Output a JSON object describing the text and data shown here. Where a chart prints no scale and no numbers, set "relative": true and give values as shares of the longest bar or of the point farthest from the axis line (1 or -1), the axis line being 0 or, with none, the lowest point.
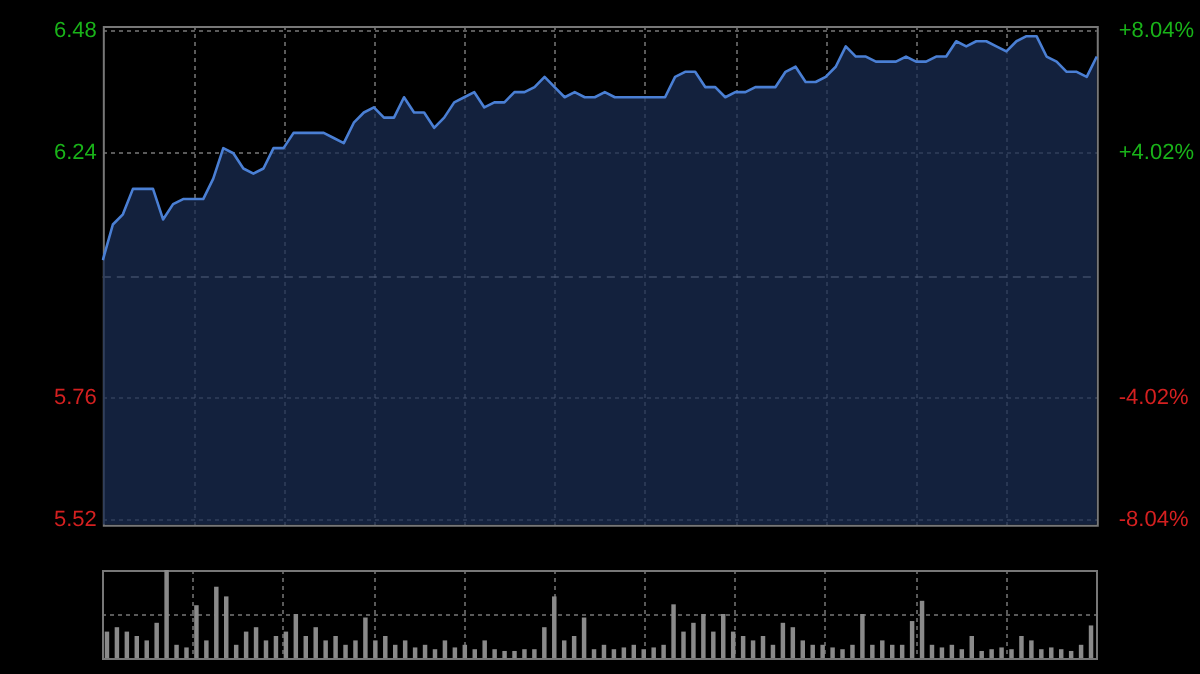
{
  "chart_data": [
    {
      "type": "area",
      "color": "#4a7fd4",
      "categories": [
        null,
        null,
        null,
        null,
        null,
        null,
        null,
        null,
        null,
        null,
        null,
        null,
        null,
        null,
        null,
        null,
        null,
        null,
        null,
        null,
        null,
        null,
        null,
        null,
        null,
        null,
        null,
        null,
        null,
        null,
        null,
        null,
        null,
        null,
        null,
        null,
        null,
        null,
        null,
        null,
        null,
        null,
        null,
        null,
        null,
        null,
        null,
        null,
        null,
        null,
        null,
        null,
        null,
        null,
        null,
        null,
        null,
        null,
        null,
        null,
        null,
        null,
        null,
        null,
        null,
        null,
        null,
        null,
        null,
        null,
        null,
        null,
        null,
        null,
        null,
        null,
        null,
        null,
        null,
        null,
        null,
        null,
        null,
        null,
        null,
        null,
        null,
        null,
        null,
        null,
        null,
        null,
        null,
        null,
        null,
        null,
        null,
        null,
        null,
        null
      ],
      "values": [
        6.03,
        6.1,
        6.12,
        6.17,
        6.17,
        6.17,
        6.11,
        6.14,
        6.15,
        6.15,
        6.15,
        6.19,
        6.25,
        6.24,
        6.21,
        6.2,
        6.21,
        6.25,
        6.25,
        6.28,
        6.28,
        6.28,
        6.28,
        6.27,
        6.26,
        6.3,
        6.32,
        6.33,
        6.31,
        6.31,
        6.35,
        6.32,
        6.32,
        6.29,
        6.31,
        6.34,
        6.35,
        6.36,
        6.33,
        6.34,
        6.34,
        6.36,
        6.36,
        6.37,
        6.39,
        6.37,
        6.35,
        6.36,
        6.35,
        6.35,
        6.36,
        6.35,
        6.35,
        6.35,
        6.35,
        6.35,
        6.35,
        6.39,
        6.4,
        6.4,
        6.37,
        6.37,
        6.35,
        6.36,
        6.36,
        6.37,
        6.37,
        6.37,
        6.4,
        6.41,
        6.38,
        6.38,
        6.39,
        6.41,
        6.45,
        6.43,
        6.43,
        6.42,
        6.42,
        6.42,
        6.43,
        6.42,
        6.42,
        6.43,
        6.43,
        6.46,
        6.45,
        6.46,
        6.46,
        6.45,
        6.44,
        6.46,
        6.47,
        6.47,
        6.43,
        6.42,
        6.4,
        6.4,
        6.39,
        6.43
      ],
      "ylim": [
        5.51,
        6.49
      ],
      "yticks": [
        5.52,
        5.76,
        6.24,
        6.48
      ],
      "y2lim": [
        -8.2,
        8.2
      ],
      "y2ticks": [
        {
          "value": -8.04,
          "label": "-8.04%"
        },
        {
          "value": -4.02,
          "label": "-4.02%"
        },
        {
          "value": 4.02,
          "label": "+4.02%"
        },
        {
          "value": 8.04,
          "label": "+8.04%"
        }
      ],
      "ref_lines": [
        {
          "axis": "y",
          "value": 6.0
        }
      ],
      "grid": true
    },
    {
      "type": "bar",
      "relative": true,
      "color": "#8a8a8a",
      "grid": true,
      "categories": [
        null,
        null,
        null,
        null,
        null,
        null,
        null,
        null,
        null,
        null,
        null,
        null,
        null,
        null,
        null,
        null,
        null,
        null,
        null,
        null,
        null,
        null,
        null,
        null,
        null,
        null,
        null,
        null,
        null,
        null,
        null,
        null,
        null,
        null,
        null,
        null,
        null,
        null,
        null,
        null,
        null,
        null,
        null,
        null,
        null,
        null,
        null,
        null,
        null,
        null,
        null,
        null,
        null,
        null,
        null,
        null,
        null,
        null,
        null,
        null,
        null,
        null,
        null,
        null,
        null,
        null,
        null,
        null,
        null,
        null,
        null,
        null,
        null,
        null,
        null,
        null,
        null,
        null,
        null,
        null,
        null,
        null,
        null,
        null,
        null,
        null,
        null,
        null,
        null,
        null,
        null,
        null,
        null,
        null,
        null,
        null,
        null,
        null,
        null,
        null
      ],
      "values": [
        0.3,
        0.35,
        0.3,
        0.25,
        0.2,
        0.4,
        1.0,
        0.15,
        0.12,
        0.6,
        0.2,
        0.81,
        0.7,
        0.15,
        0.3,
        0.35,
        0.2,
        0.25,
        0.3,
        0.5,
        0.25,
        0.35,
        0.2,
        0.25,
        0.15,
        0.2,
        0.46,
        0.2,
        0.25,
        0.15,
        0.2,
        0.12,
        0.15,
        0.1,
        0.2,
        0.12,
        0.15,
        0.1,
        0.2,
        0.1,
        0.08,
        0.08,
        0.1,
        0.1,
        0.35,
        0.7,
        0.2,
        0.25,
        0.46,
        0.1,
        0.15,
        0.1,
        0.12,
        0.15,
        0.1,
        0.12,
        0.15,
        0.61,
        0.3,
        0.4,
        0.5,
        0.3,
        0.5,
        0.3,
        0.25,
        0.2,
        0.25,
        0.15,
        0.4,
        0.35,
        0.2,
        0.15,
        0.15,
        0.12,
        0.1,
        0.15,
        0.5,
        0.15,
        0.2,
        0.15,
        0.15,
        0.42,
        0.65,
        0.15,
        0.12,
        0.15,
        0.1,
        0.25,
        0.08,
        0.1,
        0.12,
        0.1,
        0.25,
        0.2,
        0.1,
        0.12,
        0.1,
        0.08,
        0.15,
        0.37
      ]
    }
  ]
}
